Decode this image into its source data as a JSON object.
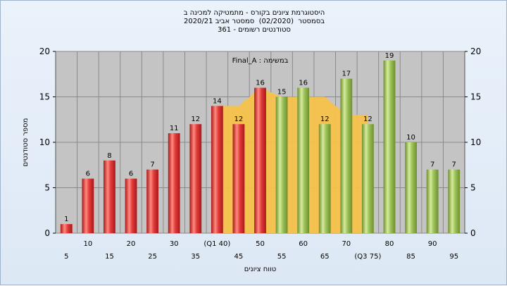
{
  "title_lines": [
    "היסטוגרמת ציונים בקורס - מתמטיקה למכינה ב",
    "בסמסטר  (02/2020)  סמסטר אביב 2020/21",
    "361 - סטודנטים רשומים"
  ],
  "chart_data": {
    "type": "bar",
    "x": [
      5,
      10,
      15,
      20,
      25,
      30,
      35,
      40,
      45,
      50,
      55,
      60,
      65,
      70,
      75,
      80,
      85,
      90,
      95
    ],
    "x_tick_labels": [
      "5",
      "10",
      "15",
      "20",
      "25",
      "30",
      "35",
      "(Q1 40)",
      "45",
      "50",
      "55",
      "60",
      "65",
      "70",
      "(Q3 75)",
      "80",
      "85",
      "90",
      "95"
    ],
    "values": [
      1,
      6,
      8,
      6,
      7,
      11,
      12,
      14,
      12,
      16,
      15,
      16,
      12,
      17,
      12,
      19,
      10,
      7,
      7
    ],
    "bar_colors": [
      "red",
      "red",
      "red",
      "red",
      "red",
      "red",
      "red",
      "red",
      "red",
      "red",
      "green",
      "green",
      "green",
      "green",
      "green",
      "green",
      "green",
      "green",
      "green"
    ],
    "band": {
      "x": [
        40,
        45,
        50,
        55,
        60,
        65,
        70,
        75
      ],
      "y": [
        14,
        14,
        16,
        15,
        15,
        15,
        13,
        13
      ]
    },
    "annotation": "Final_A : במשימה",
    "xlabel": "טווח ציונים",
    "ylabel": "מספר סטודנטים",
    "ylim": [
      0,
      20
    ],
    "y_ticks": [
      0,
      5,
      10,
      15,
      20
    ],
    "grid": true,
    "colors": {
      "red": "#e23b3b",
      "green": "#9cc25a",
      "band": "#f5c24a",
      "plot_bg": "#c4c4c4"
    }
  }
}
